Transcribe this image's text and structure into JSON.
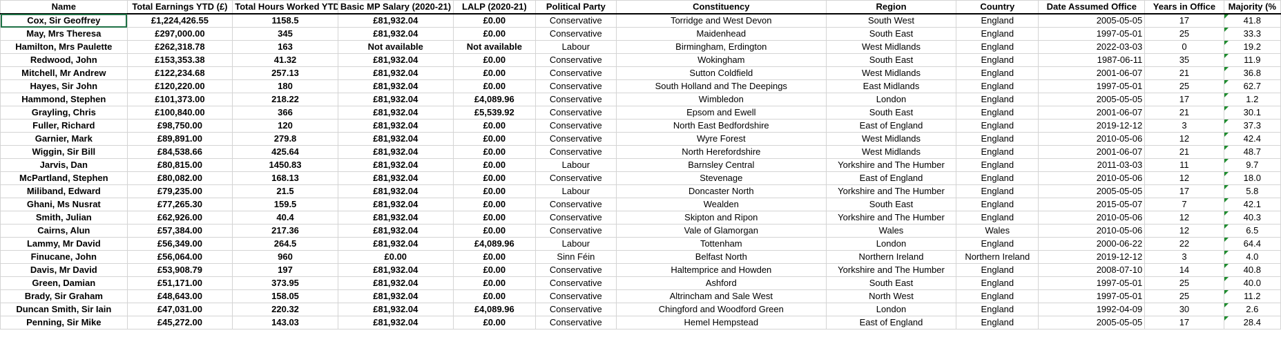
{
  "headers": [
    "Name",
    "Total Earnings YTD (£)",
    "Total Hours Worked YTD",
    "Basic MP Salary (2020-21)",
    "LALP (2020-21)",
    "Political Party",
    "Constituency",
    "Region",
    "Country",
    "Date Assumed Office",
    "Years in Office",
    "Majority (%"
  ],
  "rows": [
    [
      "Cox, Sir Geoffrey",
      "£1,224,426.55",
      "1158.5",
      "£81,932.04",
      "£0.00",
      "Conservative",
      "Torridge and West Devon",
      "South West",
      "England",
      "2005-05-05",
      "17",
      "41.8"
    ],
    [
      "May, Mrs Theresa",
      "£297,000.00",
      "345",
      "£81,932.04",
      "£0.00",
      "Conservative",
      "Maidenhead",
      "South East",
      "England",
      "1997-05-01",
      "25",
      "33.3"
    ],
    [
      "Hamilton, Mrs Paulette",
      "£262,318.78",
      "163",
      "Not available",
      "Not available",
      "Labour",
      "Birmingham, Erdington",
      "West Midlands",
      "England",
      "2022-03-03",
      "0",
      "19.2"
    ],
    [
      "Redwood, John",
      "£153,353.38",
      "41.32",
      "£81,932.04",
      "£0.00",
      "Conservative",
      "Wokingham",
      "South East",
      "England",
      "1987-06-11",
      "35",
      "11.9"
    ],
    [
      "Mitchell, Mr Andrew",
      "£122,234.68",
      "257.13",
      "£81,932.04",
      "£0.00",
      "Conservative",
      "Sutton Coldfield",
      "West Midlands",
      "England",
      "2001-06-07",
      "21",
      "36.8"
    ],
    [
      "Hayes, Sir John",
      "£120,220.00",
      "180",
      "£81,932.04",
      "£0.00",
      "Conservative",
      "South Holland and The Deepings",
      "East Midlands",
      "England",
      "1997-05-01",
      "25",
      "62.7"
    ],
    [
      "Hammond, Stephen",
      "£101,373.00",
      "218.22",
      "£81,932.04",
      "£4,089.96",
      "Conservative",
      "Wimbledon",
      "London",
      "England",
      "2005-05-05",
      "17",
      "1.2"
    ],
    [
      "Grayling, Chris",
      "£100,840.00",
      "366",
      "£81,932.04",
      "£5,539.92",
      "Conservative",
      "Epsom and Ewell",
      "South East",
      "England",
      "2001-06-07",
      "21",
      "30.1"
    ],
    [
      "Fuller, Richard",
      "£98,750.00",
      "120",
      "£81,932.04",
      "£0.00",
      "Conservative",
      "North East Bedfordshire",
      "East of England",
      "England",
      "2019-12-12",
      "3",
      "37.3"
    ],
    [
      "Garnier, Mark",
      "£89,891.00",
      "279.8",
      "£81,932.04",
      "£0.00",
      "Conservative",
      "Wyre Forest",
      "West Midlands",
      "England",
      "2010-05-06",
      "12",
      "42.4"
    ],
    [
      "Wiggin, Sir Bill",
      "£84,538.66",
      "425.64",
      "£81,932.04",
      "£0.00",
      "Conservative",
      "North Herefordshire",
      "West Midlands",
      "England",
      "2001-06-07",
      "21",
      "48.7"
    ],
    [
      "Jarvis, Dan",
      "£80,815.00",
      "1450.83",
      "£81,932.04",
      "£0.00",
      "Labour",
      "Barnsley Central",
      "Yorkshire and The Humber",
      "England",
      "2011-03-03",
      "11",
      "9.7"
    ],
    [
      "McPartland, Stephen",
      "£80,082.00",
      "168.13",
      "£81,932.04",
      "£0.00",
      "Conservative",
      "Stevenage",
      "East of England",
      "England",
      "2010-05-06",
      "12",
      "18.0"
    ],
    [
      "Miliband, Edward",
      "£79,235.00",
      "21.5",
      "£81,932.04",
      "£0.00",
      "Labour",
      "Doncaster North",
      "Yorkshire and The Humber",
      "England",
      "2005-05-05",
      "17",
      "5.8"
    ],
    [
      "Ghani, Ms Nusrat",
      "£77,265.30",
      "159.5",
      "£81,932.04",
      "£0.00",
      "Conservative",
      "Wealden",
      "South East",
      "England",
      "2015-05-07",
      "7",
      "42.1"
    ],
    [
      "Smith, Julian",
      "£62,926.00",
      "40.4",
      "£81,932.04",
      "£0.00",
      "Conservative",
      "Skipton and Ripon",
      "Yorkshire and The Humber",
      "England",
      "2010-05-06",
      "12",
      "40.3"
    ],
    [
      "Cairns, Alun",
      "£57,384.00",
      "217.36",
      "£81,932.04",
      "£0.00",
      "Conservative",
      "Vale of Glamorgan",
      "Wales",
      "Wales",
      "2010-05-06",
      "12",
      "6.5"
    ],
    [
      "Lammy, Mr David",
      "£56,349.00",
      "264.5",
      "£81,932.04",
      "£4,089.96",
      "Labour",
      "Tottenham",
      "London",
      "England",
      "2000-06-22",
      "22",
      "64.4"
    ],
    [
      "Finucane, John",
      "£56,064.00",
      "960",
      "£0.00",
      "£0.00",
      "Sinn Féin",
      "Belfast North",
      "Northern Ireland",
      "Northern Ireland",
      "2019-12-12",
      "3",
      "4.0"
    ],
    [
      "Davis, Mr David",
      "£53,908.79",
      "197",
      "£81,932.04",
      "£0.00",
      "Conservative",
      "Haltemprice and Howden",
      "Yorkshire and The Humber",
      "England",
      "2008-07-10",
      "14",
      "40.8"
    ],
    [
      "Green, Damian",
      "£51,171.00",
      "373.95",
      "£81,932.04",
      "£0.00",
      "Conservative",
      "Ashford",
      "South East",
      "England",
      "1997-05-01",
      "25",
      "40.0"
    ],
    [
      "Brady, Sir Graham",
      "£48,643.00",
      "158.05",
      "£81,932.04",
      "£0.00",
      "Conservative",
      "Altrincham and Sale West",
      "North West",
      "England",
      "1997-05-01",
      "25",
      "11.2"
    ],
    [
      "Duncan Smith, Sir Iain",
      "£47,031.00",
      "220.32",
      "£81,932.04",
      "£4,089.96",
      "Conservative",
      "Chingford and Woodford Green",
      "London",
      "England",
      "1992-04-09",
      "30",
      "2.6"
    ],
    [
      "Penning, Sir Mike",
      "£45,272.00",
      "143.03",
      "£81,932.04",
      "£0.00",
      "Conservative",
      "Hemel Hempstead",
      "East of England",
      "England",
      "2005-05-05",
      "17",
      "28.4"
    ]
  ],
  "colors": {
    "grid": "#d4d4d4",
    "selection": "#1e7145",
    "error_marker": "#1e8c2e"
  }
}
